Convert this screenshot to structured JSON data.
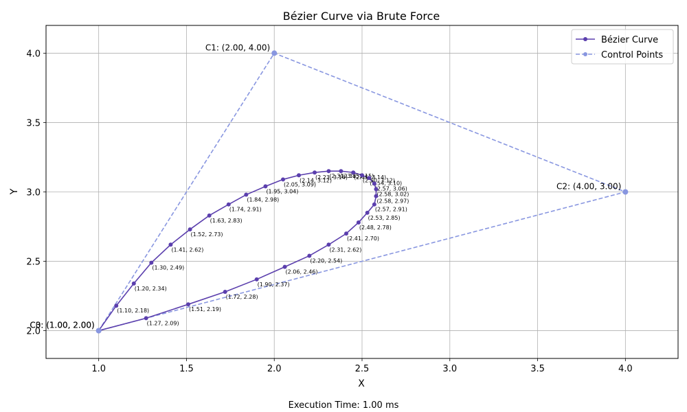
{
  "chart_data": {
    "type": "line",
    "title": "Bézier Curve via Brute Force",
    "xlabel": "X",
    "ylabel": "Y",
    "xlim": [
      0.7,
      4.3
    ],
    "ylim": [
      1.8,
      4.2
    ],
    "xticks": [
      "1.0",
      "1.5",
      "2.0",
      "2.5",
      "3.0",
      "3.5",
      "4.0"
    ],
    "xtick_values": [
      1.0,
      1.5,
      2.0,
      2.5,
      3.0,
      3.5,
      4.0
    ],
    "yticks": [
      "2.0",
      "2.5",
      "3.0",
      "3.5",
      "4.0"
    ],
    "ytick_values": [
      2.0,
      2.5,
      3.0,
      3.5,
      4.0
    ],
    "grid": true,
    "legend_position": "top-right",
    "series": [
      {
        "name": "Bézier Curve",
        "color": "#5b3fad",
        "style": "solid",
        "marker": "circle",
        "points": [
          {
            "x": 1.0,
            "y": 2.0,
            "label": ""
          },
          {
            "x": 1.1,
            "y": 2.18,
            "label": "(1.10, 2.18)"
          },
          {
            "x": 1.2,
            "y": 2.34,
            "label": "(1.20, 2.34)"
          },
          {
            "x": 1.3,
            "y": 2.49,
            "label": "(1.30, 2.49)"
          },
          {
            "x": 1.41,
            "y": 2.62,
            "label": "(1.41, 2.62)"
          },
          {
            "x": 1.52,
            "y": 2.73,
            "label": "(1.52, 2.73)"
          },
          {
            "x": 1.63,
            "y": 2.83,
            "label": "(1.63, 2.83)"
          },
          {
            "x": 1.74,
            "y": 2.91,
            "label": "(1.74, 2.91)"
          },
          {
            "x": 1.84,
            "y": 2.98,
            "label": "(1.84, 2.98)"
          },
          {
            "x": 1.95,
            "y": 3.04,
            "label": "(1.95, 3.04)"
          },
          {
            "x": 2.05,
            "y": 3.09,
            "label": "(2.05, 3.09)"
          },
          {
            "x": 2.14,
            "y": 3.12,
            "label": "(2.14, 3.12)"
          },
          {
            "x": 2.23,
            "y": 3.14,
            "label": "(2.23, 3.14)"
          },
          {
            "x": 2.31,
            "y": 3.15,
            "label": "(2.31, 3.15)"
          },
          {
            "x": 2.38,
            "y": 3.15,
            "label": "(2.38, 3.15)"
          },
          {
            "x": 2.45,
            "y": 3.14,
            "label": "(2.45, 3.14)"
          },
          {
            "x": 2.5,
            "y": 3.12,
            "label": "(2.50, 3.12)"
          },
          {
            "x": 2.54,
            "y": 3.1,
            "label": "(2.54, 3.10)"
          },
          {
            "x": 2.57,
            "y": 3.06,
            "label": "(2.57, 3.06)"
          },
          {
            "x": 2.58,
            "y": 3.02,
            "label": "(2.58, 3.02)"
          },
          {
            "x": 2.58,
            "y": 2.97,
            "label": "(2.58, 2.97)"
          },
          {
            "x": 2.57,
            "y": 2.91,
            "label": "(2.57, 2.91)"
          },
          {
            "x": 2.53,
            "y": 2.85,
            "label": "(2.53, 2.85)"
          },
          {
            "x": 2.48,
            "y": 2.78,
            "label": "(2.48, 2.78)"
          },
          {
            "x": 2.41,
            "y": 2.7,
            "label": "(2.41, 2.70)"
          },
          {
            "x": 2.31,
            "y": 2.62,
            "label": "(2.31, 2.62)"
          },
          {
            "x": 2.2,
            "y": 2.54,
            "label": "(2.20, 2.54)"
          },
          {
            "x": 2.06,
            "y": 2.46,
            "label": "(2.06, 2.46)"
          },
          {
            "x": 1.9,
            "y": 2.37,
            "label": "(1.90, 2.37)"
          },
          {
            "x": 1.72,
            "y": 2.28,
            "label": "(1.72, 2.28)"
          },
          {
            "x": 1.51,
            "y": 2.19,
            "label": "(1.51, 2.19)"
          },
          {
            "x": 1.27,
            "y": 2.09,
            "label": "(1.27, 2.09)"
          },
          {
            "x": 1.0,
            "y": 2.0,
            "label": ""
          }
        ]
      },
      {
        "name": "Control Points",
        "color": "#8896e0",
        "style": "dashed",
        "marker": "circle",
        "points": [
          {
            "x": 1.0,
            "y": 2.0,
            "label": "C0: (1.00, 2.00)"
          },
          {
            "x": 2.0,
            "y": 4.0,
            "label": "C1: (2.00, 4.00)"
          },
          {
            "x": 4.0,
            "y": 3.0,
            "label": "C2: (4.00, 3.00)"
          },
          {
            "x": 1.0,
            "y": 2.0,
            "label": "C3: (1.00, 2.00)"
          }
        ]
      }
    ]
  },
  "footer": {
    "execution_time": "Execution Time: 1.00 ms"
  }
}
